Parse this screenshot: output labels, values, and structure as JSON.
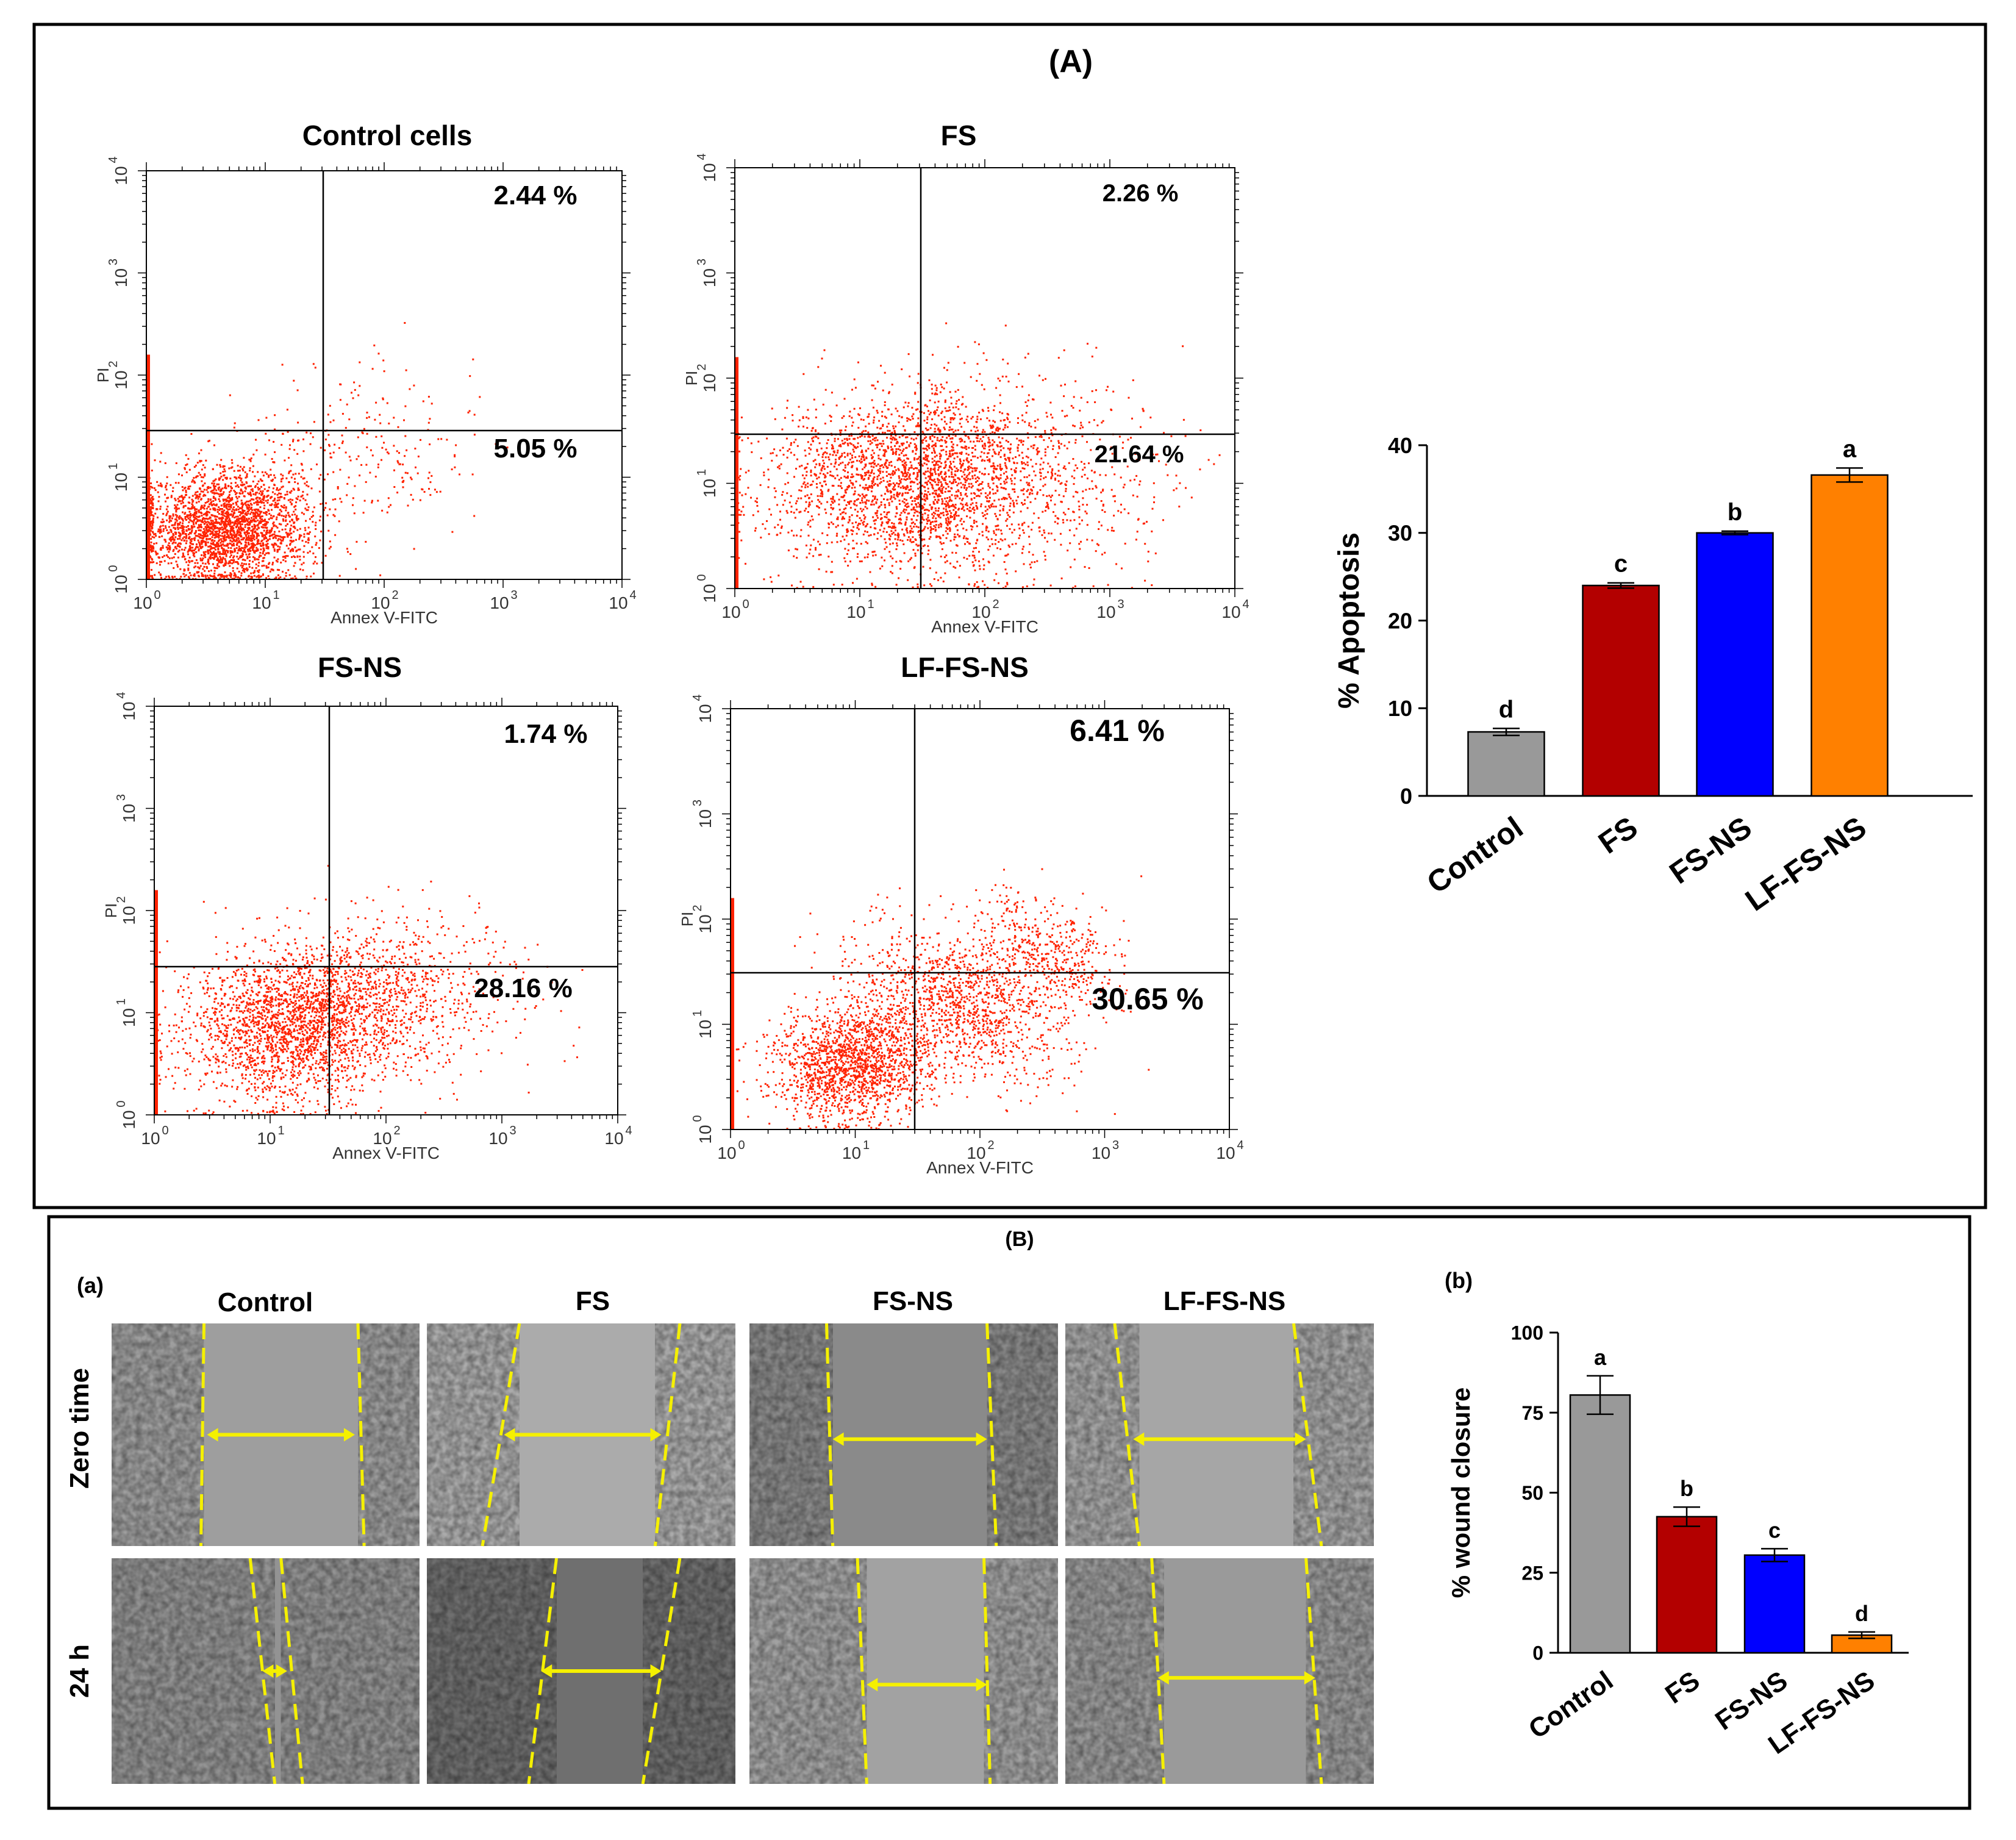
{
  "panel_a": {
    "label": "(A)",
    "plots": [
      {
        "title": "Control cells",
        "q_upper_right": "2.44 %",
        "q_lower_right": "5.05 %"
      },
      {
        "title": "FS",
        "q_upper_right": "2.26 %",
        "q_lower_right": "21.64 %"
      },
      {
        "title": "FS-NS",
        "q_upper_right": "1.74 %",
        "q_lower_right": "28.16 %"
      },
      {
        "title": "LF-FS-NS",
        "q_upper_right": "6.41 %",
        "q_lower_right": "30.65 %"
      }
    ],
    "flow_axes": {
      "xlabel": "Annex V-FITC",
      "ylabel": "PI",
      "tick_base": "10",
      "tick_exponents": [
        "0",
        "1",
        "2",
        "3",
        "4"
      ]
    }
  },
  "panel_b": {
    "label": "(B)",
    "sublabel_a": "(a)",
    "sublabel_b": "(b)",
    "column_labels": [
      "Control",
      "FS",
      "FS-NS",
      "LF-FS-NS"
    ],
    "row_labels": [
      "Zero time",
      "24 h"
    ],
    "arrow_color": "#f5f000"
  },
  "chart_data": [
    {
      "type": "bar",
      "categories": [
        "Control",
        "FS",
        "FS-NS",
        "LF-FS-NS"
      ],
      "values": [
        7.3,
        24.0,
        30.0,
        36.6
      ],
      "errors": [
        0.4,
        0.3,
        0.2,
        0.8
      ],
      "significance_letters": [
        "d",
        "c",
        "b",
        "a"
      ],
      "colors": [
        "#999999",
        "#b30000",
        "#0000ff",
        "#ff8000"
      ],
      "ylabel": "% Apoptosis",
      "ylim": [
        0,
        40
      ],
      "yticks": [
        "0",
        "10",
        "20",
        "30",
        "40"
      ],
      "ytick_values": [
        0,
        10,
        20,
        30,
        40
      ],
      "grid": false
    },
    {
      "type": "bar",
      "categories": [
        "Control",
        "FS",
        "FS-NS",
        "LF-FS-NS"
      ],
      "values": [
        80.5,
        42.5,
        30.5,
        5.5
      ],
      "errors": [
        6.0,
        3.0,
        2.0,
        1.0
      ],
      "significance_letters": [
        "a",
        "b",
        "c",
        "d"
      ],
      "colors": [
        "#999999",
        "#b30000",
        "#0000ff",
        "#ff8000"
      ],
      "ylabel": "% wound closure",
      "ylim": [
        0,
        100
      ],
      "yticks": [
        "0",
        "25",
        "50",
        "75",
        "100"
      ],
      "ytick_values": [
        0,
        25,
        50,
        75,
        100
      ],
      "grid": false
    }
  ]
}
